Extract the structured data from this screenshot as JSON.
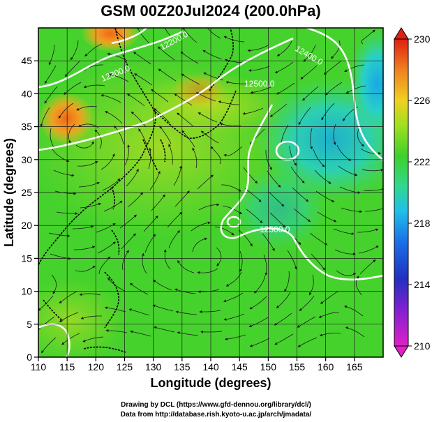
{
  "chart_data": {
    "type": "heatmap",
    "title": "GSM 00Z20Jul2024 (200.0hPa)",
    "xlabel": "Longitude (degrees)",
    "ylabel": "Latitude  (degrees)",
    "xlim": [
      110,
      170
    ],
    "ylim": [
      0,
      50
    ],
    "x_ticks": [
      "110",
      "115",
      "120",
      "125",
      "130",
      "135",
      "140",
      "145",
      "150",
      "155",
      "160",
      "165"
    ],
    "y_ticks": [
      "0",
      "5",
      "10",
      "15",
      "20",
      "25",
      "30",
      "35",
      "40",
      "45"
    ],
    "colorbar": {
      "range": [
        210,
        230
      ],
      "ticks": [
        "210",
        "214",
        "218",
        "222",
        "226",
        "230"
      ]
    },
    "contour_labels": [
      "12200.0",
      "12300.0",
      "12400.0",
      "12500.0",
      "12500.0"
    ],
    "grid": true,
    "fields": {
      "shading": "temperature",
      "contours": "geopotential height",
      "vectors": "wind streamlines"
    },
    "colors": {
      "warm": "#e8a020",
      "mid": "#3cd22a",
      "cool": "#2ab4e0",
      "contour": "#ffffff"
    }
  },
  "credits": {
    "line1": "Drawing by DCL (https://www.gfd-dennou.org/library/dcl/)",
    "line2": "Data from http://database.rish.kyoto-u.ac.jp/arch/jmadata/"
  }
}
